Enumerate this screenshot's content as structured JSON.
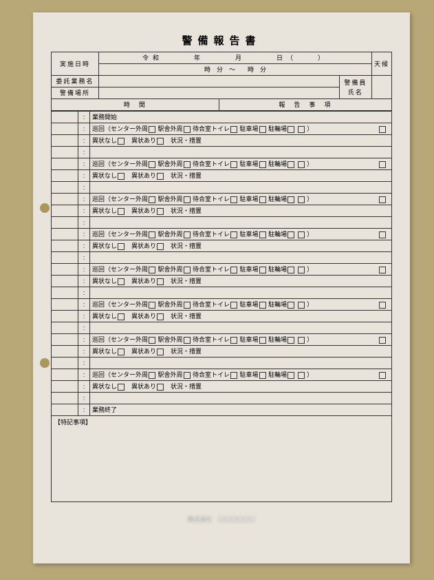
{
  "title": "警備報告書",
  "header": {
    "impl_date_label": "実施日時",
    "date_line": "令和　　　年　　　月　　　日（　　）",
    "time_line": "時　分　～　　時　分",
    "weather_label": "天候",
    "client_label": "委託業務名",
    "client_value": "　",
    "guard_name_label": "警備員氏名",
    "location_label": "警備場所",
    "location_value": "　",
    "time_col_label": "時　間",
    "report_col_label": "報　告　事　項"
  },
  "entries": {
    "start": "業務開始",
    "end": "業務終了",
    "patrol_line": "巡回（センター外周　　駅舎外周　　待合室トイレ　　駐車場　　駐輪場　　",
    "patrol_end": "）",
    "status_line_a": "異状なし",
    "status_line_b": "異状あり",
    "status_line_c": "状況・措置"
  },
  "notes_label": "【特記事項】",
  "footer": "株式会社　〇〇〇〇〇〇",
  "colors": {
    "desk": "#b8a878",
    "paper": "#e8e4dc",
    "border": "#333333"
  }
}
